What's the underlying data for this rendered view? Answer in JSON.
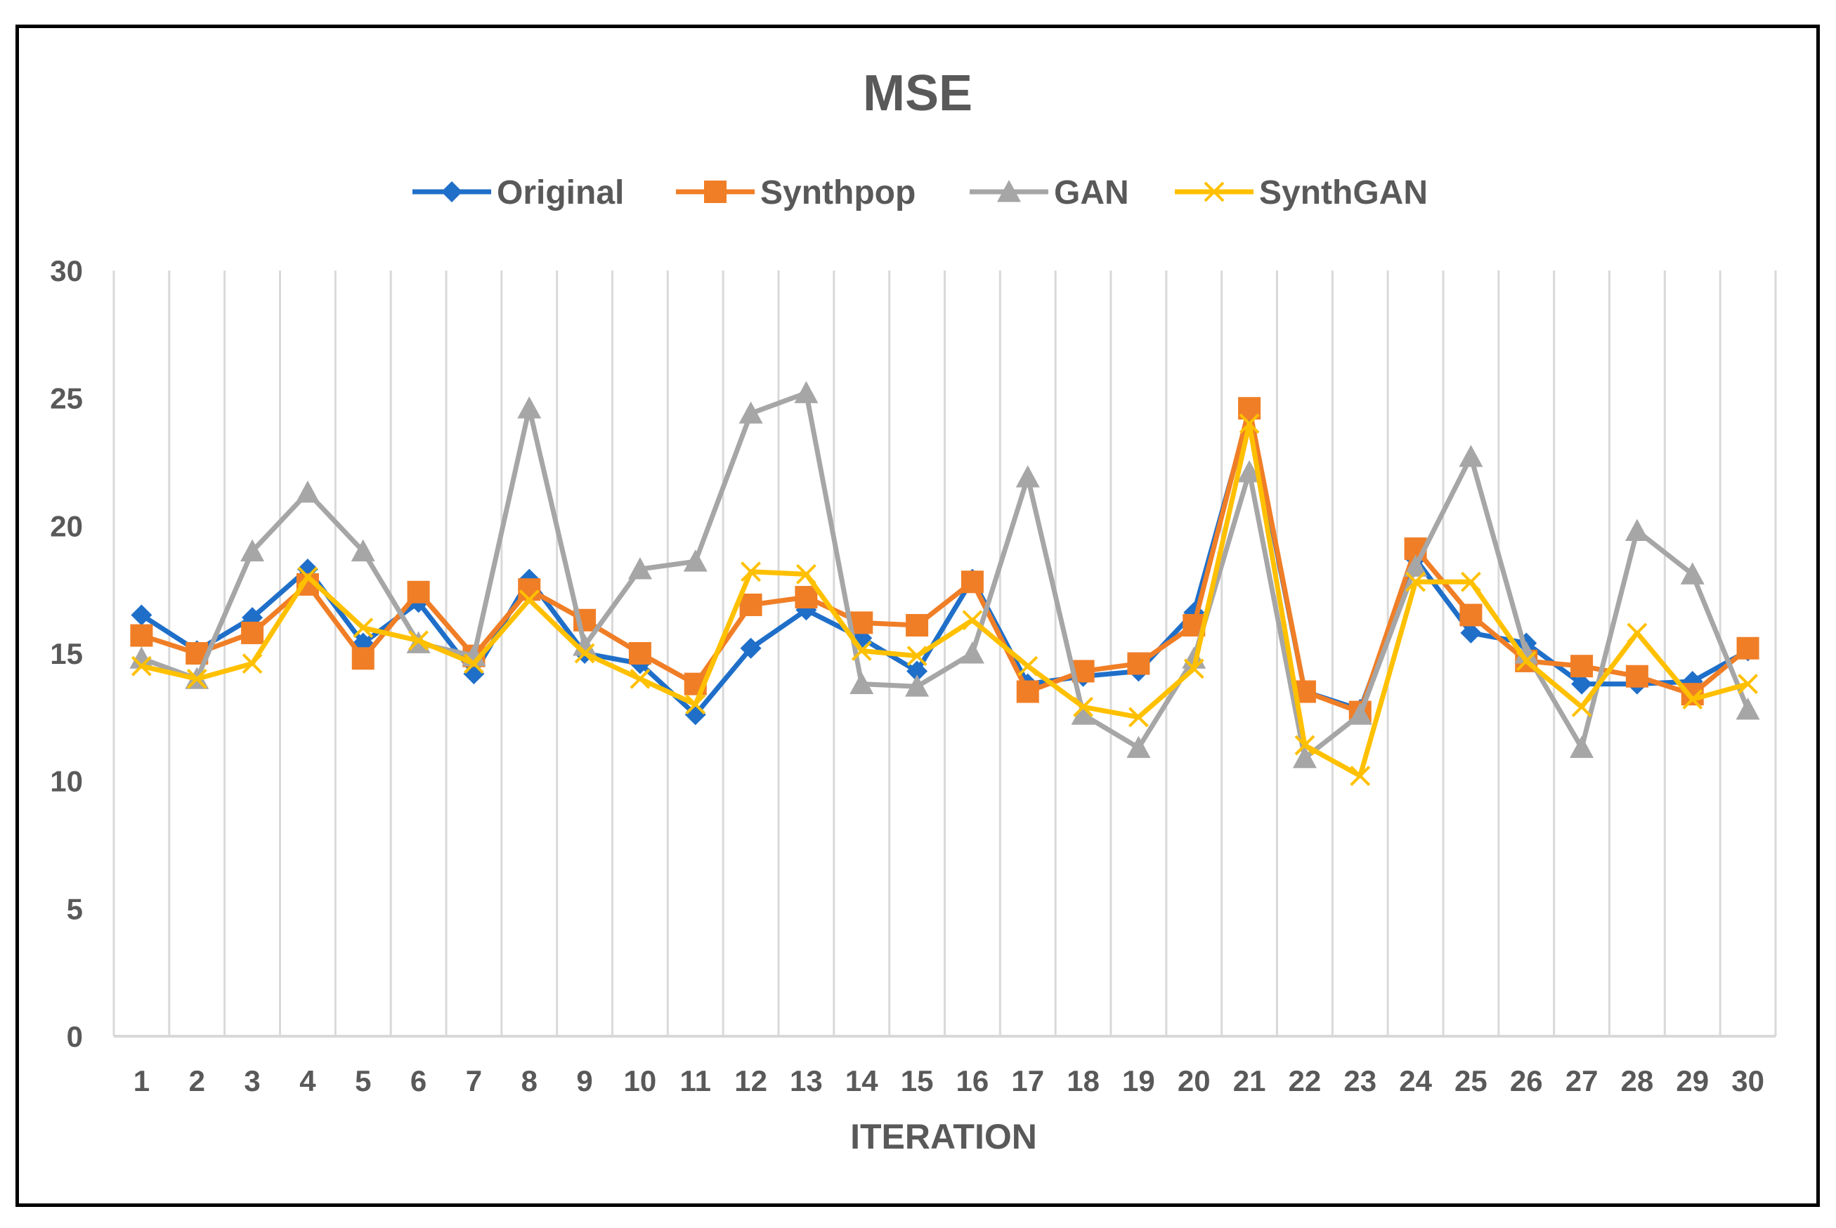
{
  "chart_data": {
    "type": "line",
    "title": "MSE",
    "xlabel": "ITERATION",
    "ylabel": "",
    "ylim": [
      0,
      30
    ],
    "yticks": [
      0,
      5,
      10,
      15,
      20,
      25,
      30
    ],
    "grid": "vertical",
    "legend": "top",
    "categories": [
      "1",
      "2",
      "3",
      "4",
      "5",
      "6",
      "7",
      "8",
      "9",
      "10",
      "11",
      "12",
      "13",
      "14",
      "15",
      "16",
      "17",
      "18",
      "19",
      "20",
      "21",
      "22",
      "23",
      "24",
      "25",
      "26",
      "27",
      "28",
      "29",
      "30"
    ],
    "series": [
      {
        "name": "Original",
        "color": "#1f6fc9",
        "marker": "diamond",
        "values": [
          16.5,
          15.1,
          16.4,
          18.3,
          15.4,
          17.0,
          14.2,
          17.9,
          15.0,
          14.6,
          12.6,
          15.2,
          16.7,
          15.6,
          14.3,
          17.9,
          13.8,
          14.1,
          14.3,
          16.6,
          24.4,
          13.5,
          12.8,
          18.7,
          15.8,
          15.4,
          13.8,
          13.8,
          13.9,
          15.1
        ]
      },
      {
        "name": "Synthpop",
        "color": "#f07e26",
        "marker": "square",
        "values": [
          15.7,
          15.0,
          15.8,
          17.7,
          14.8,
          17.4,
          14.9,
          17.5,
          16.3,
          15.0,
          13.8,
          16.9,
          17.2,
          16.2,
          16.1,
          17.8,
          13.5,
          14.3,
          14.6,
          16.1,
          24.6,
          13.5,
          12.7,
          19.1,
          16.5,
          14.7,
          14.5,
          14.1,
          13.4,
          15.2
        ]
      },
      {
        "name": "GAN",
        "color": "#a6a6a6",
        "marker": "triangle",
        "values": [
          14.8,
          14.0,
          19.0,
          21.3,
          19.0,
          15.4,
          14.9,
          24.6,
          15.3,
          18.3,
          18.6,
          24.4,
          25.2,
          13.8,
          13.7,
          15.0,
          21.9,
          12.6,
          11.3,
          14.8,
          22.1,
          10.9,
          12.6,
          18.4,
          22.7,
          15.0,
          11.3,
          19.8,
          18.1,
          12.8
        ]
      },
      {
        "name": "SynthGAN",
        "color": "#ffc000",
        "marker": "x",
        "values": [
          14.5,
          14.0,
          14.6,
          18.0,
          16.0,
          15.5,
          14.6,
          17.1,
          15.0,
          14.0,
          13.0,
          18.2,
          18.1,
          15.1,
          14.9,
          16.3,
          14.5,
          12.9,
          12.5,
          14.4,
          24.0,
          11.4,
          10.2,
          17.8,
          17.8,
          14.7,
          12.9,
          15.8,
          13.2,
          13.8
        ]
      }
    ]
  }
}
